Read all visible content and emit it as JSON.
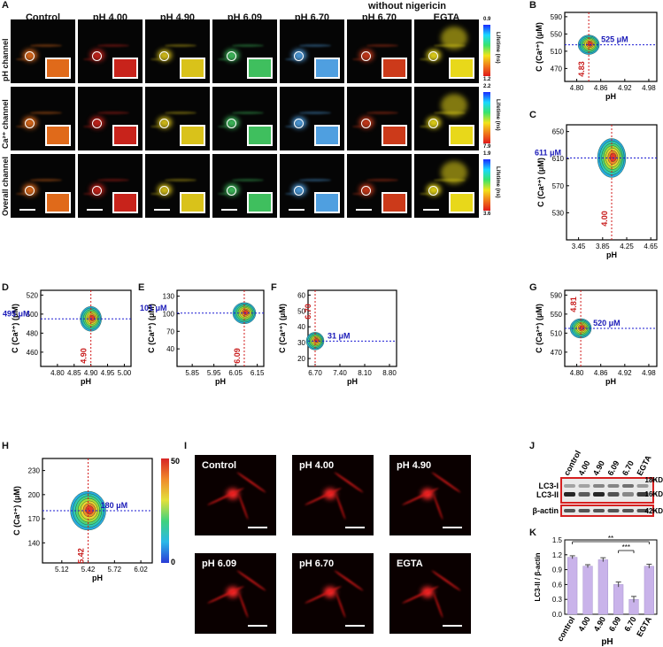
{
  "panelA": {
    "letter": "A",
    "group_title": "without nigericin",
    "columns": [
      "Control",
      "pH 4.00",
      "pH 4.90",
      "pH 6.09",
      "pH 6.70",
      "pH 6.70",
      "EGTA"
    ],
    "rows": [
      {
        "label": "pH channel",
        "colorbar": {
          "top": "0.9",
          "bottom": "1.2",
          "name": "Lifetime (ns)"
        }
      },
      {
        "label": "Ca²⁺ channel",
        "colorbar": {
          "top": "2.2",
          "bottom": "7.9",
          "name": "Lifetime (ns)"
        }
      },
      {
        "label": "Overall channel",
        "colorbar": {
          "top": "1.9",
          "bottom": "3.6",
          "name": "Lifetime (ns)"
        }
      }
    ],
    "tile_colors": [
      "#e06a1a",
      "#c8231b",
      "#d9c21a",
      "#3fbf5e",
      "#4f9fe0",
      "#cc3a1a",
      "#e8d81a"
    ]
  },
  "contours": [
    {
      "letter": "B",
      "ylabel": "C (Ca²⁺) (μM)",
      "xlabel": "pH",
      "xticks": [
        "4.80",
        "4.86",
        "4.92",
        "4.98"
      ],
      "yticks": [
        "590",
        "550",
        "510",
        "470"
      ],
      "xlim": [
        4.77,
        5.0
      ],
      "ylim": [
        440,
        600
      ],
      "peak_x": 4.83,
      "peak_y": 525,
      "vline_label": "4.83",
      "hline_label": "525 μM"
    },
    {
      "letter": "C",
      "ylabel": "C (Ca²⁺) (μM)",
      "xlabel": "pH",
      "xticks": [
        "3.45",
        "3.85",
        "4.25",
        "4.65"
      ],
      "yticks": [
        "650",
        "610",
        "570",
        "530"
      ],
      "xlim": [
        3.25,
        4.75
      ],
      "ylim": [
        490,
        660
      ],
      "peak_x": 4.0,
      "peak_y": 611,
      "vline_label": "4.00",
      "hline_label": "611 μM"
    },
    {
      "letter": "D",
      "ylabel": "C (Ca²⁺) (μM)",
      "xlabel": "pH",
      "xticks": [
        "4.80",
        "4.85",
        "4.90",
        "4.95",
        "5.00"
      ],
      "yticks": [
        "520",
        "500",
        "480",
        "460"
      ],
      "xlim": [
        4.75,
        5.02
      ],
      "ylim": [
        445,
        525
      ],
      "peak_x": 4.9,
      "peak_y": 495,
      "vline_label": "4.90",
      "hline_label": "495 μM"
    },
    {
      "letter": "E",
      "ylabel": "C (Ca²⁺) (μM)",
      "xlabel": "pH",
      "xticks": [
        "5.85",
        "5.95",
        "6.05",
        "6.15"
      ],
      "yticks": [
        "130",
        "100",
        "70",
        "40"
      ],
      "xlim": [
        5.78,
        6.18
      ],
      "ylim": [
        10,
        140
      ],
      "peak_x": 6.09,
      "peak_y": 101,
      "vline_label": "6.09",
      "hline_label": "101 μM"
    },
    {
      "letter": "F",
      "ylabel": "C (Ca²⁺) (μM)",
      "xlabel": "pH",
      "xticks": [
        "6.70",
        "7.40",
        "8.10",
        "8.80"
      ],
      "yticks": [
        "60",
        "50",
        "40",
        "30",
        "20"
      ],
      "xlim": [
        6.5,
        9.0
      ],
      "ylim": [
        15,
        63
      ],
      "peak_x": 6.7,
      "peak_y": 31,
      "vline_label": "6.70",
      "hline_label": "31 μM"
    },
    {
      "letter": "G",
      "ylabel": "C (Ca²⁺) (μM)",
      "xlabel": "pH",
      "xticks": [
        "4.80",
        "4.86",
        "4.92",
        "4.98"
      ],
      "yticks": [
        "590",
        "550",
        "510",
        "470"
      ],
      "xlim": [
        4.77,
        5.0
      ],
      "ylim": [
        440,
        600
      ],
      "peak_x": 4.81,
      "peak_y": 520,
      "vline_label": "4.81",
      "hline_label": "520 μM"
    },
    {
      "letter": "H",
      "ylabel": "C (Ca²⁺) (μM)",
      "xlabel": "pH",
      "xticks": [
        "5.12",
        "5.42",
        "5.72",
        "6.02"
      ],
      "yticks": [
        "230",
        "200",
        "170",
        "140"
      ],
      "xlim": [
        4.9,
        6.15
      ],
      "ylim": [
        115,
        245
      ],
      "peak_x": 5.42,
      "peak_y": 180,
      "vline_label": "5.42",
      "hline_label": "180 μM",
      "colorbar": {
        "top": "50",
        "bottom": "0"
      }
    }
  ],
  "panelI": {
    "letter": "I",
    "labels": [
      "Control",
      "pH 4.00",
      "pH 4.90",
      "pH 6.09",
      "pH 6.70",
      "EGTA"
    ]
  },
  "panelJ": {
    "letter": "J",
    "lanes": [
      "control",
      "4.00",
      "4.90",
      "6.09",
      "6.70",
      "EGTA"
    ],
    "bands": [
      "LC3-I",
      "LC3-II",
      "β-actin"
    ],
    "sizes": [
      "18KD",
      "16KD",
      "42KD"
    ]
  },
  "chart_data": {
    "type": "bar",
    "title": "K",
    "categories": [
      "control",
      "4.00",
      "4.90",
      "6.09",
      "6.70",
      "EGTA"
    ],
    "values": [
      1.15,
      0.97,
      1.1,
      0.6,
      0.3,
      0.97
    ],
    "errors": [
      0.03,
      0.03,
      0.04,
      0.05,
      0.06,
      0.04
    ],
    "ylabel": "LC3-II / β-actin",
    "xlabel": "pH",
    "ylim": [
      0,
      1.5
    ],
    "yticks": [
      "0.0",
      "0.3",
      "0.6",
      "0.9",
      "1.2",
      "1.5"
    ],
    "significance": [
      {
        "from": "control",
        "to": "EGTA",
        "label": "**"
      },
      {
        "from": "6.09",
        "to": "6.70",
        "label": "***"
      }
    ],
    "bar_color": "#c9b3ea"
  }
}
